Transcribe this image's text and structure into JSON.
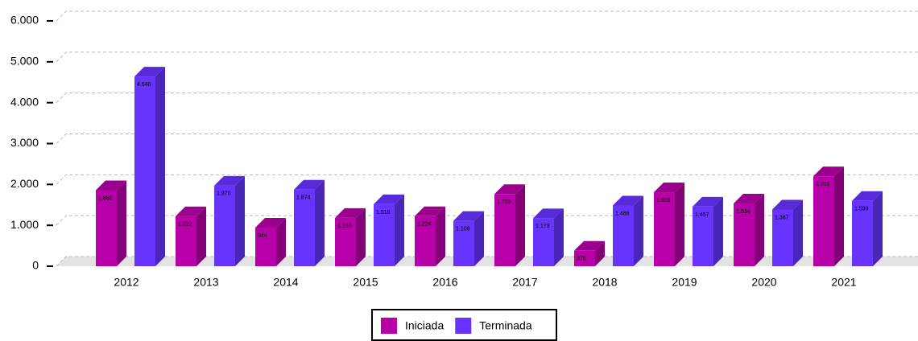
{
  "chart_data": {
    "type": "bar3d",
    "categories": [
      "2012",
      "2013",
      "2014",
      "2015",
      "2016",
      "2017",
      "2018",
      "2019",
      "2020",
      "2021"
    ],
    "series": [
      {
        "name": "Iniciada",
        "color": "#b800a8",
        "values": [
          1860,
          1222,
          944,
          1183,
          1224,
          1765,
          378,
          1809,
          1534,
          2201
        ],
        "value_labels": [
          "1.860",
          "1.222",
          "944",
          "1.183",
          "1.224",
          "1.765",
          "378",
          "1.809",
          "1.534",
          "2.201"
        ]
      },
      {
        "name": "Terminada",
        "color": "#6633ff",
        "values": [
          4640,
          1970,
          1874,
          1516,
          1109,
          1173,
          1486,
          1457,
          1387,
          1599
        ],
        "value_labels": [
          "4.640",
          "1.970",
          "1.874",
          "1.516",
          "1.109",
          "1.173",
          "1.486",
          "1.457",
          "1.387",
          "1.599"
        ]
      }
    ],
    "ylim": [
      0,
      6000
    ],
    "yticks": [
      0,
      {
        "value": 1000,
        "label": "1.000"
      },
      {
        "value": 2000,
        "label": "2.000"
      },
      {
        "value": 3000,
        "label": "3.000"
      },
      {
        "value": 4000,
        "label": "4.000"
      },
      {
        "value": 5000,
        "label": "5.000"
      },
      {
        "value": 6000,
        "label": "6.000"
      }
    ],
    "grid": true,
    "legend": "bottom"
  }
}
